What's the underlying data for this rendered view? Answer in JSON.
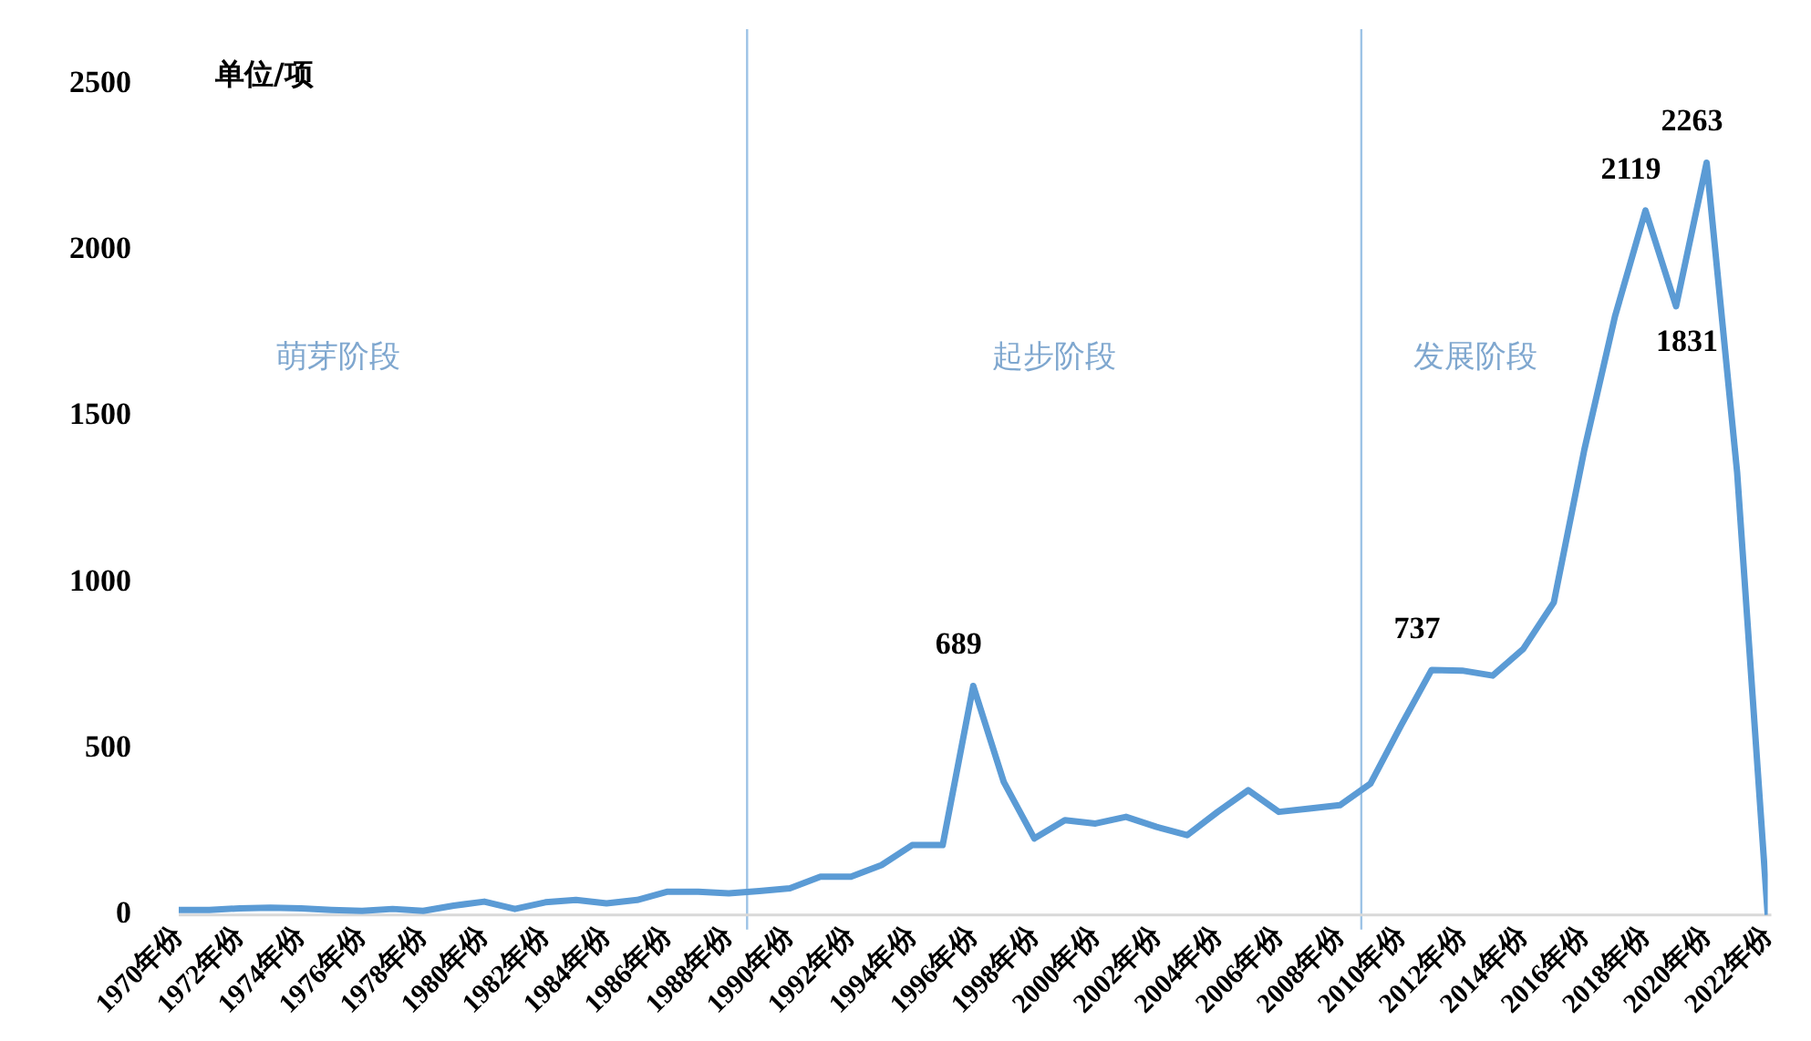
{
  "chart_data": {
    "type": "line",
    "ylabel": "单位/项",
    "x": [
      1970,
      1971,
      1972,
      1973,
      1974,
      1975,
      1976,
      1977,
      1978,
      1979,
      1980,
      1981,
      1982,
      1983,
      1984,
      1985,
      1986,
      1987,
      1988,
      1989,
      1990,
      1991,
      1992,
      1993,
      1994,
      1995,
      1996,
      1997,
      1998,
      1999,
      2000,
      2001,
      2002,
      2003,
      2004,
      2005,
      2006,
      2007,
      2008,
      2009,
      2010,
      2011,
      2012,
      2013,
      2014,
      2015,
      2016,
      2017,
      2018,
      2019,
      2020,
      2021,
      2022
    ],
    "series": [
      {
        "color": "#5b9bd5",
        "values": [
          15,
          15,
          20,
          22,
          20,
          15,
          12,
          18,
          12,
          28,
          40,
          18,
          38,
          45,
          35,
          45,
          70,
          70,
          65,
          72,
          80,
          115,
          115,
          150,
          210,
          210,
          689,
          400,
          230,
          285,
          275,
          295,
          265,
          240,
          310,
          375,
          310,
          320,
          330,
          395,
          570,
          737,
          735,
          720,
          800,
          940,
          1400,
          1800,
          2119,
          1831,
          2263,
          1330,
          0
        ],
        "value_labels": [
          null,
          null,
          null,
          null,
          null,
          null,
          null,
          null,
          null,
          null,
          null,
          null,
          null,
          null,
          null,
          null,
          null,
          null,
          null,
          null,
          null,
          null,
          null,
          null,
          null,
          null,
          "689",
          null,
          null,
          null,
          null,
          null,
          null,
          null,
          null,
          null,
          null,
          null,
          null,
          null,
          null,
          "737",
          null,
          null,
          null,
          null,
          null,
          null,
          "2119",
          "1831",
          "2263",
          null,
          null
        ]
      }
    ],
    "xlim": [
      1970,
      2022
    ],
    "xticks": [
      {
        "value": 1970,
        "label": "1970年份"
      },
      {
        "value": 1972,
        "label": "1972年份"
      },
      {
        "value": 1974,
        "label": "1974年份"
      },
      {
        "value": 1976,
        "label": "1976年份"
      },
      {
        "value": 1978,
        "label": "1978年份"
      },
      {
        "value": 1980,
        "label": "1980年份"
      },
      {
        "value": 1982,
        "label": "1982年份"
      },
      {
        "value": 1984,
        "label": "1984年份"
      },
      {
        "value": 1986,
        "label": "1986年份"
      },
      {
        "value": 1988,
        "label": "1988年份"
      },
      {
        "value": 1990,
        "label": "1990年份"
      },
      {
        "value": 1992,
        "label": "1992年份"
      },
      {
        "value": 1994,
        "label": "1994年份"
      },
      {
        "value": 1996,
        "label": "1996年份"
      },
      {
        "value": 1998,
        "label": "1998年份"
      },
      {
        "value": 2000,
        "label": "2000年份"
      },
      {
        "value": 2002,
        "label": "2002年份"
      },
      {
        "value": 2004,
        "label": "2004年份"
      },
      {
        "value": 2006,
        "label": "2006年份"
      },
      {
        "value": 2008,
        "label": "2008年份"
      },
      {
        "value": 2010,
        "label": "2010年份"
      },
      {
        "value": 2012,
        "label": "2012年份"
      },
      {
        "value": 2014,
        "label": "2014年份"
      },
      {
        "value": 2016,
        "label": "2016年份"
      },
      {
        "value": 2018,
        "label": "2018年份"
      },
      {
        "value": 2020,
        "label": "2020年份"
      },
      {
        "value": 2022,
        "label": "2022年份"
      }
    ],
    "ylim": [
      0,
      2500
    ],
    "yticks": [
      0,
      500,
      1000,
      1500,
      2000,
      2500
    ],
    "ref_lines": [
      {
        "axis": "x",
        "value": 1988.6,
        "color": "#9dc3e6"
      },
      {
        "axis": "x",
        "value": 2008.7,
        "color": "#9dc3e6"
      }
    ],
    "annotations": [
      "萌芽阶段",
      "起步阶段",
      "发展阶段"
    ],
    "grid": false,
    "legend": false,
    "marker": "none",
    "line_style": "solid"
  }
}
